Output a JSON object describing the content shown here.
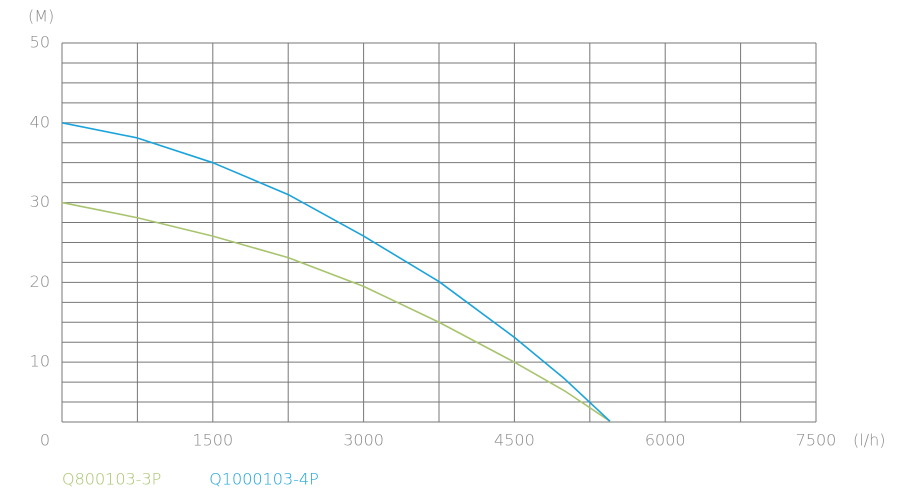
{
  "chart_data": {
    "type": "line",
    "y_label": "(M)",
    "x_label": "(l/h)",
    "xlim": [
      0,
      7500
    ],
    "xticks": [
      0,
      1500,
      3000,
      4500,
      6000,
      7500
    ],
    "xgrid": [
      0,
      750,
      1500,
      2250,
      3000,
      3750,
      4500,
      5250,
      6000,
      6750,
      7500
    ],
    "ylim": [
      2.5,
      50
    ],
    "yticks": [
      10,
      20,
      30,
      40,
      50
    ],
    "ygrid": [
      2.5,
      5,
      7.5,
      10,
      12.5,
      15,
      17.5,
      20,
      22.5,
      25,
      27.5,
      30,
      32.5,
      35,
      37.5,
      40,
      42.5,
      45,
      47.5,
      50
    ],
    "grid": true,
    "x": [
      0,
      750,
      1500,
      2250,
      3000,
      3750,
      4500,
      5000,
      5450
    ],
    "series": [
      {
        "name": "Q800103-3P",
        "color": "#a8c46e",
        "values": [
          30,
          28.1,
          25.8,
          23.1,
          19.5,
          15,
          10,
          6.4,
          2.6
        ]
      },
      {
        "name": "Q1000103-4P",
        "color": "#1ba3db",
        "values": [
          40,
          38.1,
          35,
          31,
          25.8,
          20.1,
          13.1,
          7.9,
          2.6
        ]
      }
    ]
  }
}
